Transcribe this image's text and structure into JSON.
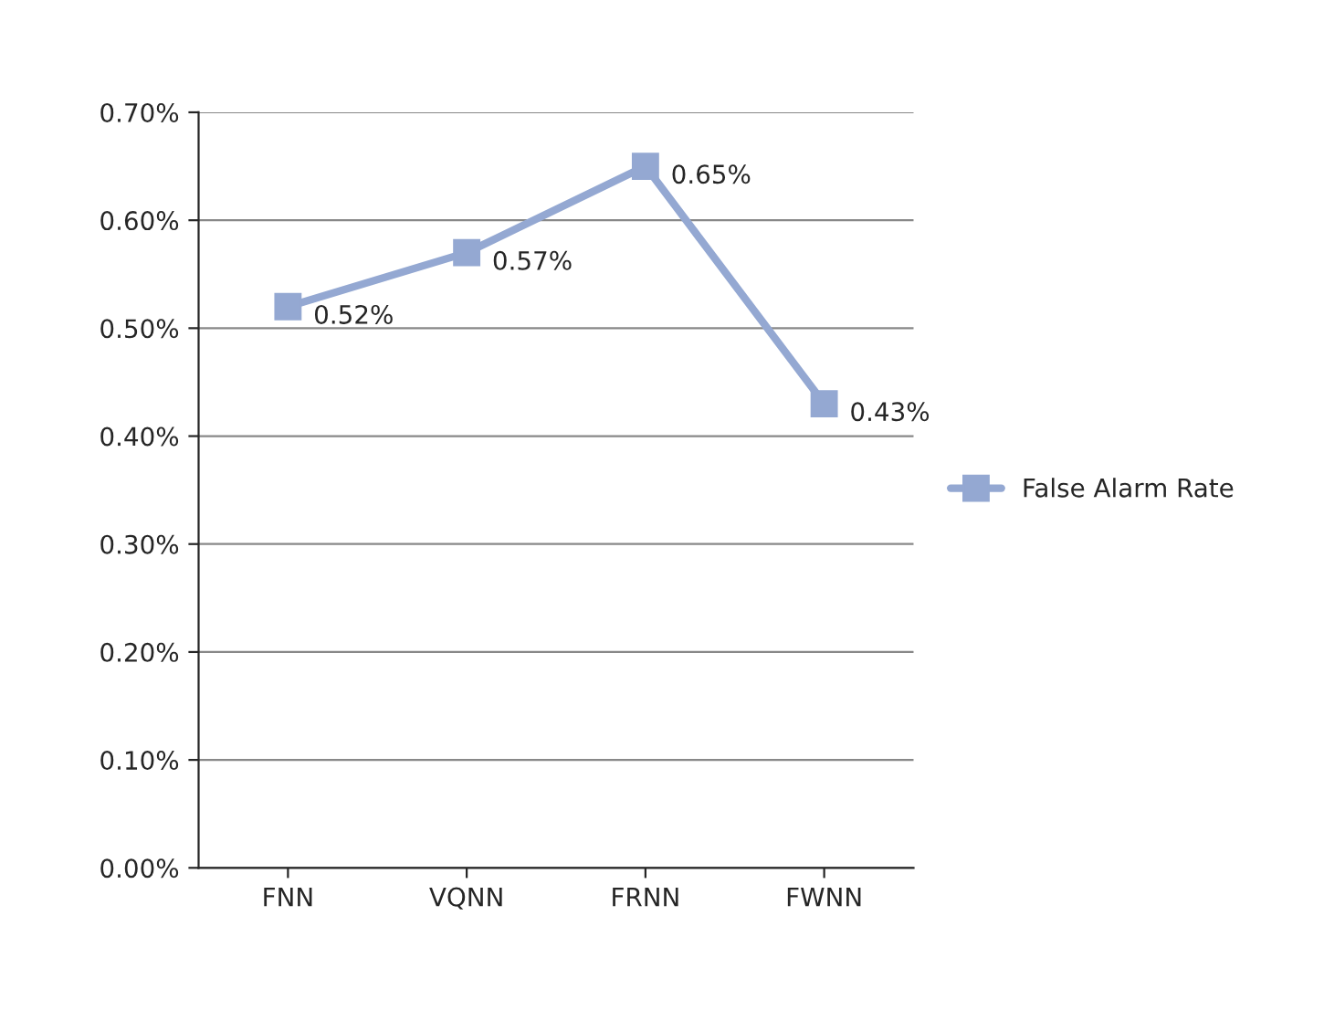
{
  "chart_data": {
    "type": "line",
    "categories": [
      "FNN",
      "VQNN",
      "FRNN",
      "FWNN"
    ],
    "series": [
      {
        "name": "False Alarm Rate",
        "color": "#94a8d2",
        "values": [
          0.52,
          0.57,
          0.65,
          0.43
        ],
        "value_labels": [
          "0.52%",
          "0.57%",
          "0.65%",
          "0.43%"
        ]
      }
    ],
    "ylim": [
      0,
      0.7
    ],
    "yticks": [
      {
        "value": 0,
        "label": "0.00%"
      },
      {
        "value": 0.1,
        "label": "0.10%"
      },
      {
        "value": 0.2,
        "label": "0.20%"
      },
      {
        "value": 0.3,
        "label": "0.30%"
      },
      {
        "value": 0.4,
        "label": "0.40%"
      },
      {
        "value": 0.5,
        "label": "0.50%"
      },
      {
        "value": 0.6,
        "label": "0.60%"
      },
      {
        "value": 0.7,
        "label": "0.70%"
      }
    ],
    "grid": "y",
    "legend": "right",
    "marker": "square",
    "line_style": "solid"
  }
}
